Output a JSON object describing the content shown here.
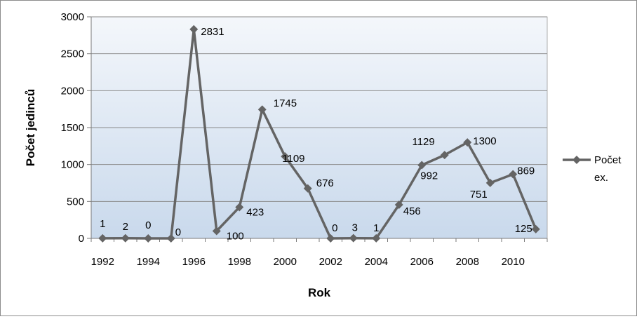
{
  "chart_data": {
    "type": "line",
    "title": "",
    "xlabel": "Rok",
    "ylabel": "Počet jedinců",
    "x": [
      1992,
      1993,
      1994,
      1995,
      1996,
      1997,
      1998,
      1999,
      2000,
      2001,
      2002,
      2003,
      2004,
      2005,
      2006,
      2007,
      2008,
      2009,
      2010,
      2011
    ],
    "x_tick_labels": [
      "1992",
      "1994",
      "1996",
      "1998",
      "2000",
      "2002",
      "2004",
      "2006",
      "2008",
      "2010"
    ],
    "ylim": [
      0,
      3000
    ],
    "y_ticks": [
      0,
      500,
      1000,
      1500,
      2000,
      2500,
      3000
    ],
    "grid": true,
    "legend": "right",
    "series": [
      {
        "name": "Počet ex.",
        "color": "#646464",
        "values": [
          1,
          2,
          0,
          0,
          2831,
          100,
          423,
          1745,
          1109,
          676,
          0,
          3,
          1,
          456,
          992,
          1129,
          1300,
          751,
          869,
          125
        ]
      }
    ]
  },
  "colors": {
    "plot_background_top": "#f4f7fb",
    "plot_background_bottom": "#c9d9ec",
    "gridline": "#8a8a8a",
    "line": "#646464"
  }
}
